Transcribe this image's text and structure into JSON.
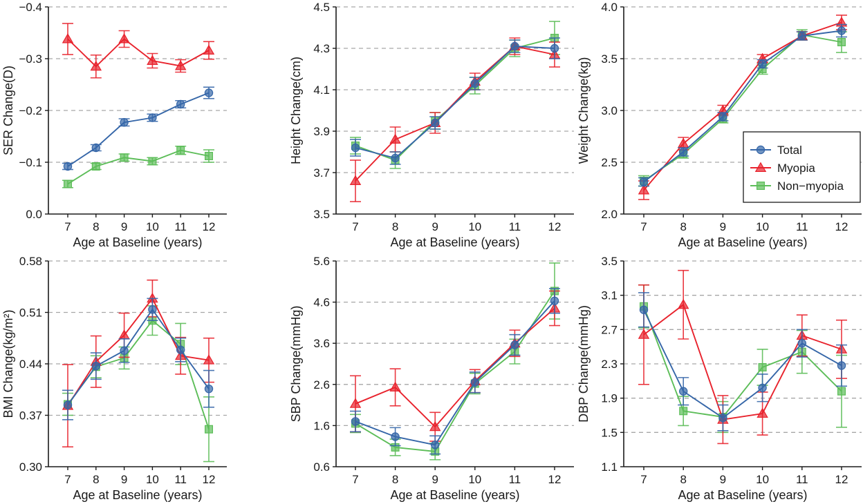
{
  "colors": {
    "total": "#3566a8",
    "myopia": "#e8222c",
    "non_myopia": "#5cbd58",
    "grid": "#a6a6a6",
    "axis": "#1a1a1a"
  },
  "legend": {
    "entries": [
      {
        "name": "Total",
        "key": "total",
        "marker": "circle"
      },
      {
        "name": "Myopia",
        "key": "myopia",
        "marker": "triangle"
      },
      {
        "name": "Non−myopia",
        "key": "non_myopia",
        "marker": "square"
      }
    ],
    "placement": "right, inside weight panel"
  },
  "chart_data": [
    {
      "type": "line",
      "id": "ser",
      "title": "",
      "xlabel": "Age at Baseline (years)",
      "ylabel": "SER Change(D)",
      "x": [
        7,
        8,
        9,
        10,
        11,
        12
      ],
      "x_tick_labels": [
        "7",
        "8",
        "9",
        "10",
        "11",
        "12"
      ],
      "ylim": [
        0.0,
        -0.4
      ],
      "y_ticks": [
        0.0,
        -0.1,
        -0.2,
        -0.3,
        -0.4
      ],
      "y_tick_labels": [
        "0.0",
        "−0.1",
        "−0.2",
        "−0.3",
        "−0.4"
      ],
      "grid": "horizontal dashed",
      "series": [
        {
          "name": "Total",
          "key": "total",
          "values": [
            -0.092,
            -0.128,
            -0.177,
            -0.186,
            -0.212,
            -0.234
          ],
          "err": [
            0.006,
            0.006,
            0.007,
            0.007,
            0.007,
            0.011
          ]
        },
        {
          "name": "Myopia",
          "key": "myopia",
          "values": [
            -0.338,
            -0.285,
            -0.338,
            -0.296,
            -0.286,
            -0.316
          ],
          "err": [
            0.03,
            0.022,
            0.016,
            0.014,
            0.012,
            0.017
          ]
        },
        {
          "name": "Non−myopia",
          "key": "non_myopia",
          "values": [
            -0.058,
            -0.092,
            -0.109,
            -0.102,
            -0.123,
            -0.112
          ],
          "err": [
            0.007,
            0.006,
            0.007,
            0.007,
            0.008,
            0.012
          ]
        }
      ]
    },
    {
      "type": "line",
      "id": "height",
      "title": "",
      "xlabel": "Age at Baseline (years)",
      "ylabel": "Height Change(cm)",
      "x": [
        7,
        8,
        9,
        10,
        11,
        12
      ],
      "x_tick_labels": [
        "7",
        "8",
        "9",
        "10",
        "11",
        "12"
      ],
      "ylim": [
        3.5,
        4.5
      ],
      "y_ticks": [
        3.5,
        3.7,
        3.9,
        4.1,
        4.3,
        4.5
      ],
      "y_tick_labels": [
        "3.5",
        "3.7",
        "3.9",
        "4.1",
        "4.3",
        "4.5"
      ],
      "grid": "horizontal dashed",
      "series": [
        {
          "name": "Total",
          "key": "total",
          "values": [
            3.82,
            3.77,
            3.94,
            4.13,
            4.31,
            4.3
          ],
          "err": [
            0.04,
            0.03,
            0.03,
            0.03,
            0.03,
            0.05
          ]
        },
        {
          "name": "Myopia",
          "key": "myopia",
          "values": [
            3.66,
            3.86,
            3.94,
            4.14,
            4.31,
            4.27
          ],
          "err": [
            0.1,
            0.06,
            0.05,
            0.04,
            0.04,
            0.06
          ]
        },
        {
          "name": "Non−myopia",
          "key": "non_myopia",
          "values": [
            3.83,
            3.76,
            3.95,
            4.12,
            4.3,
            4.35
          ],
          "err": [
            0.04,
            0.04,
            0.04,
            0.04,
            0.04,
            0.08
          ]
        }
      ]
    },
    {
      "type": "line",
      "id": "weight",
      "title": "",
      "xlabel": "Age at Baseline (years)",
      "ylabel": "Weight Change(kg)",
      "x": [
        7,
        8,
        9,
        10,
        11,
        12
      ],
      "x_tick_labels": [
        "7",
        "8",
        "9",
        "10",
        "11",
        "12"
      ],
      "ylim": [
        2.0,
        4.0
      ],
      "y_ticks": [
        2.0,
        2.5,
        3.0,
        3.5,
        4.0
      ],
      "y_tick_labels": [
        "2.0",
        "2.5",
        "3.0",
        "3.5",
        "4.0"
      ],
      "grid": "horizontal dashed",
      "series": [
        {
          "name": "Total",
          "key": "total",
          "values": [
            2.31,
            2.6,
            2.94,
            3.45,
            3.72,
            3.77
          ],
          "err": [
            0.04,
            0.04,
            0.04,
            0.04,
            0.04,
            0.06
          ]
        },
        {
          "name": "Myopia",
          "key": "myopia",
          "values": [
            2.23,
            2.68,
            3.0,
            3.5,
            3.72,
            3.85
          ],
          "err": [
            0.09,
            0.06,
            0.05,
            0.04,
            0.04,
            0.07
          ]
        },
        {
          "name": "Non−myopia",
          "key": "non_myopia",
          "values": [
            2.32,
            2.58,
            2.92,
            3.4,
            3.73,
            3.66
          ],
          "err": [
            0.05,
            0.04,
            0.04,
            0.05,
            0.05,
            0.1
          ]
        }
      ]
    },
    {
      "type": "line",
      "id": "bmi",
      "title": "",
      "xlabel": "Age at Baseline (years)",
      "ylabel": "BMI Change(kg/m²)",
      "x": [
        7,
        8,
        9,
        10,
        11,
        12
      ],
      "x_tick_labels": [
        "7",
        "8",
        "9",
        "10",
        "11",
        "12"
      ],
      "ylim": [
        0.3,
        0.58
      ],
      "y_ticks": [
        0.3,
        0.37,
        0.44,
        0.51,
        0.58
      ],
      "y_tick_labels": [
        "0.30",
        "0.37",
        "0.44",
        "0.51",
        "0.58"
      ],
      "grid": "horizontal dashed",
      "series": [
        {
          "name": "Total",
          "key": "total",
          "values": [
            0.384,
            0.437,
            0.458,
            0.514,
            0.459,
            0.406
          ],
          "err": [
            0.02,
            0.018,
            0.016,
            0.015,
            0.016,
            0.025
          ]
        },
        {
          "name": "Myopia",
          "key": "myopia",
          "values": [
            0.383,
            0.443,
            0.479,
            0.529,
            0.451,
            0.445
          ],
          "err": [
            0.056,
            0.035,
            0.03,
            0.025,
            0.025,
            0.03
          ]
        },
        {
          "name": "Non−myopia",
          "key": "non_myopia",
          "values": [
            0.385,
            0.436,
            0.448,
            0.499,
            0.467,
            0.351
          ],
          "err": [
            0.015,
            0.015,
            0.015,
            0.02,
            0.028,
            0.044
          ]
        }
      ]
    },
    {
      "type": "line",
      "id": "sbp",
      "title": "",
      "xlabel": "Age at Baseline (years)",
      "ylabel": "SBP Change(mmHg)",
      "x": [
        7,
        8,
        9,
        10,
        11,
        12
      ],
      "x_tick_labels": [
        "7",
        "8",
        "9",
        "10",
        "11",
        "12"
      ],
      "ylim": [
        0.6,
        5.6
      ],
      "y_ticks": [
        0.6,
        1.6,
        2.6,
        3.6,
        4.6,
        5.6
      ],
      "y_tick_labels": [
        "0.6",
        "1.6",
        "2.6",
        "3.6",
        "4.6",
        "5.6"
      ],
      "grid": "horizontal dashed",
      "series": [
        {
          "name": "Total",
          "key": "total",
          "values": [
            1.7,
            1.33,
            1.13,
            2.65,
            3.56,
            4.63
          ],
          "err": [
            0.25,
            0.22,
            0.22,
            0.25,
            0.25,
            0.3
          ]
        },
        {
          "name": "Myopia",
          "key": "myopia",
          "values": [
            2.13,
            2.53,
            1.57,
            2.68,
            3.6,
            4.45
          ],
          "err": [
            0.68,
            0.45,
            0.35,
            0.28,
            0.32,
            0.42
          ]
        },
        {
          "name": "Non−myopia",
          "key": "non_myopia",
          "values": [
            1.65,
            1.07,
            0.97,
            2.62,
            3.4,
            4.87
          ],
          "err": [
            0.22,
            0.2,
            0.2,
            0.25,
            0.3,
            0.68
          ]
        }
      ]
    },
    {
      "type": "line",
      "id": "dbp",
      "title": "",
      "xlabel": "Age at Baseline (years)",
      "ylabel": "DBP Change(mmHg)",
      "x": [
        7,
        8,
        9,
        10,
        11,
        12
      ],
      "x_tick_labels": [
        "7",
        "8",
        "9",
        "10",
        "11",
        "12"
      ],
      "ylim": [
        1.1,
        3.5
      ],
      "y_ticks": [
        1.1,
        1.5,
        1.9,
        2.3,
        2.7,
        3.1,
        3.5
      ],
      "y_tick_labels": [
        "1.1",
        "1.5",
        "1.9",
        "2.3",
        "2.7",
        "3.1",
        "3.5"
      ],
      "grid": "horizontal dashed",
      "series": [
        {
          "name": "Total",
          "key": "total",
          "values": [
            2.93,
            1.98,
            1.67,
            2.02,
            2.54,
            2.28
          ],
          "err": [
            0.2,
            0.16,
            0.15,
            0.16,
            0.16,
            0.24
          ]
        },
        {
          "name": "Myopia",
          "key": "myopia",
          "values": [
            2.64,
            2.99,
            1.65,
            1.72,
            2.63,
            2.47
          ],
          "err": [
            0.58,
            0.4,
            0.28,
            0.25,
            0.24,
            0.34
          ]
        },
        {
          "name": "Non−myopia",
          "key": "non_myopia",
          "values": [
            2.97,
            1.75,
            1.68,
            2.26,
            2.44,
            1.98
          ],
          "err": [
            0.25,
            0.17,
            0.18,
            0.21,
            0.25,
            0.42
          ]
        }
      ]
    }
  ]
}
